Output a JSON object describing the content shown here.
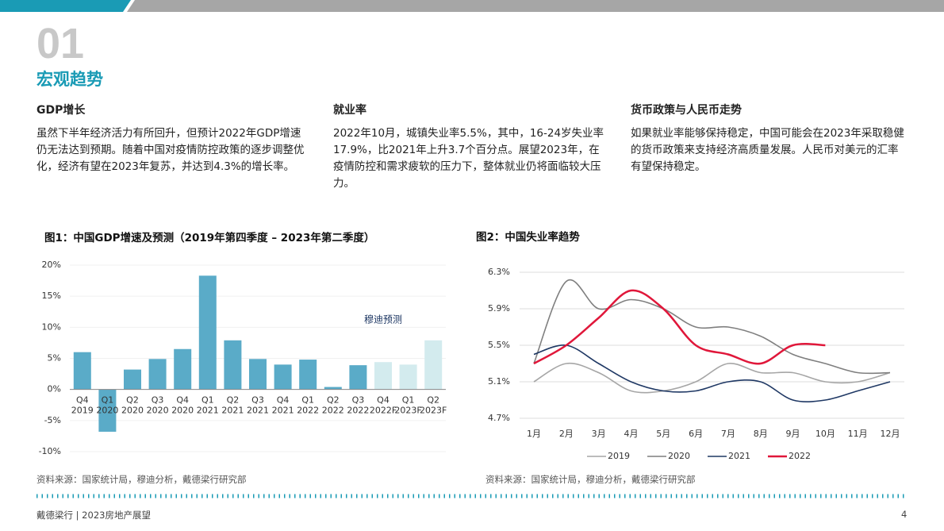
{
  "header": {
    "number": "01",
    "title": "宏观趋势"
  },
  "columns": [
    {
      "heading": "GDP增长",
      "text": "虽然下半年经济活力有所回升，但预计2022年GDP增速仍无法达到预期。随着中国对疫情防控政策的逐步调整优化，经济有望在2023年复苏，并达到4.3%的增长率。"
    },
    {
      "heading": "就业率",
      "text": "2022年10月，城镇失业率5.5%，其中，16-24岁失业率17.9%，比2021年上升3.7个百分点。展望2023年，在疫情防控和需求疲软的压力下，整体就业仍将面临较大压力。"
    },
    {
      "heading": "货币政策与人民币走势",
      "text": "如果就业率能够保持稳定，中国可能会在2023年采取稳健的货币政策来支持经济高质量发展。人民币对美元的汇率有望保持稳定。"
    }
  ],
  "chart_data": [
    {
      "type": "bar",
      "title": "图1：中国GDP增速及预测（2019年第四季度 – 2023年第二季度）",
      "categories": [
        [
          "Q4",
          "2019"
        ],
        [
          "Q1",
          "2020"
        ],
        [
          "Q2",
          "2020"
        ],
        [
          "Q3",
          "2020"
        ],
        [
          "Q4",
          "2020"
        ],
        [
          "Q1",
          "2021"
        ],
        [
          "Q2",
          "2021"
        ],
        [
          "Q3",
          "2021"
        ],
        [
          "Q4",
          "2021"
        ],
        [
          "Q1",
          "2022"
        ],
        [
          "Q2",
          "2022"
        ],
        [
          "Q3",
          "2022"
        ],
        [
          "Q4",
          "2022F"
        ],
        [
          "Q1",
          "2023F"
        ],
        [
          "Q2",
          "2023F"
        ]
      ],
      "values": [
        6.0,
        -6.8,
        3.2,
        4.9,
        6.5,
        18.3,
        7.9,
        4.9,
        4.0,
        4.8,
        0.4,
        3.9,
        4.4,
        4.0,
        7.9
      ],
      "colors": [
        "#5aabc8",
        "#5aabc8",
        "#5aabc8",
        "#5aabc8",
        "#5aabc8",
        "#5aabc8",
        "#5aabc8",
        "#5aabc8",
        "#5aabc8",
        "#5aabc8",
        "#5aabc8",
        "#5aabc8",
        "#d3ebee",
        "#d3ebee",
        "#d3ebee"
      ],
      "annotation": "穆迪预测",
      "ylim": [
        -10,
        20
      ],
      "yticks": [
        {
          "value": -10,
          "label": "-10%"
        },
        {
          "value": -5,
          "label": "-5%"
        },
        {
          "value": 0,
          "label": "0%"
        },
        {
          "value": 5,
          "label": "5%"
        },
        {
          "value": 10,
          "label": "10%"
        },
        {
          "value": 15,
          "label": "15%"
        },
        {
          "value": 20,
          "label": "20%"
        }
      ],
      "grid": true,
      "source": "资料来源：国家统计局，穆迪分析，戴德梁行研究部"
    },
    {
      "type": "line",
      "title": "图2：中国失业率趋势",
      "categories": [
        "1月",
        "2月",
        "3月",
        "4月",
        "5月",
        "6月",
        "7月",
        "8月",
        "9月",
        "10月",
        "11月",
        "12月"
      ],
      "series": [
        {
          "name": "2019",
          "color": "#a6a6a6",
          "values": [
            5.1,
            5.3,
            5.2,
            5.0,
            5.0,
            5.1,
            5.3,
            5.2,
            5.2,
            5.1,
            5.1,
            5.2
          ]
        },
        {
          "name": "2020",
          "color": "#7f7f7f",
          "values": [
            5.3,
            6.2,
            5.9,
            6.0,
            5.9,
            5.7,
            5.7,
            5.6,
            5.4,
            5.3,
            5.2,
            5.2
          ]
        },
        {
          "name": "2021",
          "color": "#1f3864",
          "values": [
            5.4,
            5.5,
            5.3,
            5.1,
            5.0,
            5.0,
            5.1,
            5.1,
            4.9,
            4.9,
            5.0,
            5.1
          ]
        },
        {
          "name": "2022",
          "color": "#e0173a",
          "values": [
            5.3,
            5.5,
            5.8,
            6.1,
            5.9,
            5.5,
            5.4,
            5.3,
            5.5,
            5.5,
            null,
            null
          ]
        }
      ],
      "ylim": [
        4.7,
        6.3
      ],
      "yticks": [
        {
          "value": 4.7,
          "label": "4.7%"
        },
        {
          "value": 5.1,
          "label": "5.1%"
        },
        {
          "value": 5.5,
          "label": "5.5%"
        },
        {
          "value": 5.9,
          "label": "5.9%"
        },
        {
          "value": 6.3,
          "label": "6.3%"
        }
      ],
      "grid": true,
      "source": "资料来源：国家统计局，穆迪分析，戴德梁行研究部"
    }
  ],
  "footer": {
    "left": "戴德梁行 | 2023房地产展望",
    "page": "4"
  }
}
